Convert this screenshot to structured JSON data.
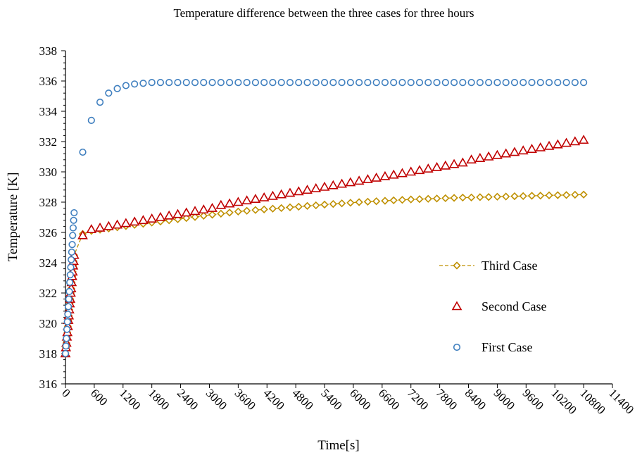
{
  "chart_data": {
    "type": "scatter",
    "title": "Temperature difference between the three cases for three hours",
    "x_label": "Time[s]",
    "y_label": "Temperature [K]",
    "xlim": [
      0,
      11400
    ],
    "xticks": [
      0,
      600,
      1200,
      1800,
      2400,
      3000,
      3600,
      4200,
      4800,
      5400,
      6000,
      6600,
      7200,
      7800,
      8400,
      9000,
      9600,
      10200,
      10800,
      11400
    ],
    "ylim": [
      316,
      338
    ],
    "yticks": [
      316,
      318,
      320,
      322,
      324,
      326,
      328,
      330,
      332,
      334,
      336,
      338
    ],
    "grid": false,
    "legend": "right",
    "x": [
      0,
      10,
      20,
      30,
      40,
      50,
      60,
      70,
      80,
      90,
      100,
      110,
      120,
      130,
      140,
      150,
      160,
      170,
      180,
      360,
      540,
      720,
      900,
      1080,
      1260,
      1440,
      1620,
      1800,
      1980,
      2160,
      2340,
      2520,
      2700,
      2880,
      3060,
      3240,
      3420,
      3600,
      3780,
      3960,
      4140,
      4320,
      4500,
      4680,
      4860,
      5040,
      5220,
      5400,
      5580,
      5760,
      5940,
      6120,
      6300,
      6480,
      6660,
      6840,
      7020,
      7200,
      7380,
      7560,
      7740,
      7920,
      8100,
      8280,
      8460,
      8640,
      8820,
      9000,
      9180,
      9360,
      9540,
      9720,
      9900,
      10080,
      10260,
      10440,
      10620,
      10800
    ],
    "series": [
      {
        "name": "Third Case",
        "color": "#bf9000",
        "marker": "diamond",
        "line": "dashed",
        "values": [
          318.0,
          318.4,
          318.7,
          319.1,
          319.4,
          319.8,
          320.2,
          320.5,
          320.9,
          321.3,
          321.6,
          322.0,
          322.3,
          322.7,
          323.1,
          323.4,
          323.8,
          324.1,
          324.5,
          325.9,
          326.1,
          326.18,
          326.26,
          326.34,
          326.42,
          326.5,
          326.57,
          326.65,
          326.72,
          326.8,
          326.87,
          326.95,
          327.02,
          327.1,
          327.17,
          327.24,
          327.31,
          327.38,
          327.43,
          327.48,
          327.52,
          327.57,
          327.61,
          327.66,
          327.7,
          327.75,
          327.79,
          327.84,
          327.88,
          327.92,
          327.96,
          328.0,
          328.03,
          328.06,
          328.09,
          328.12,
          328.15,
          328.18,
          328.2,
          328.22,
          328.24,
          328.26,
          328.28,
          328.3,
          328.31,
          328.33,
          328.34,
          328.36,
          328.37,
          328.39,
          328.4,
          328.42,
          328.43,
          328.45,
          328.46,
          328.47,
          328.49,
          328.5
        ]
      },
      {
        "name": "Second Case",
        "color": "#c00000",
        "marker": "triangle",
        "values": [
          318.0,
          318.4,
          318.7,
          319.1,
          319.4,
          319.8,
          320.2,
          320.5,
          320.9,
          321.3,
          321.6,
          322.0,
          322.3,
          322.7,
          323.1,
          323.4,
          323.8,
          324.1,
          324.5,
          325.8,
          326.2,
          326.3,
          326.4,
          326.5,
          326.6,
          326.7,
          326.8,
          326.9,
          327.0,
          327.1,
          327.2,
          327.3,
          327.4,
          327.5,
          327.6,
          327.8,
          327.9,
          328.0,
          328.1,
          328.2,
          328.3,
          328.4,
          328.5,
          328.6,
          328.7,
          328.8,
          328.9,
          329.0,
          329.1,
          329.2,
          329.3,
          329.4,
          329.5,
          329.6,
          329.7,
          329.8,
          329.9,
          330.0,
          330.1,
          330.2,
          330.3,
          330.4,
          330.5,
          330.6,
          330.8,
          330.9,
          331.0,
          331.1,
          331.2,
          331.3,
          331.4,
          331.5,
          331.6,
          331.7,
          331.8,
          331.9,
          332.0,
          332.1
        ]
      },
      {
        "name": "First Case",
        "color": "#3f7fbf",
        "marker": "circle",
        "values": [
          318.0,
          318.5,
          319.0,
          319.6,
          320.1,
          320.6,
          321.1,
          321.6,
          322.1,
          322.7,
          323.2,
          323.7,
          324.2,
          324.7,
          325.2,
          325.8,
          326.3,
          326.8,
          327.3,
          331.3,
          333.4,
          334.6,
          335.2,
          335.5,
          335.7,
          335.8,
          335.85,
          335.9,
          335.9,
          335.9,
          335.9,
          335.9,
          335.9,
          335.9,
          335.9,
          335.9,
          335.9,
          335.9,
          335.9,
          335.9,
          335.9,
          335.9,
          335.9,
          335.9,
          335.9,
          335.9,
          335.9,
          335.9,
          335.9,
          335.9,
          335.9,
          335.9,
          335.9,
          335.9,
          335.9,
          335.9,
          335.9,
          335.9,
          335.9,
          335.9,
          335.9,
          335.9,
          335.9,
          335.9,
          335.9,
          335.9,
          335.9,
          335.9,
          335.9,
          335.9,
          335.9,
          335.9,
          335.9,
          335.9,
          335.9,
          335.9,
          335.9,
          335.9
        ]
      }
    ]
  }
}
